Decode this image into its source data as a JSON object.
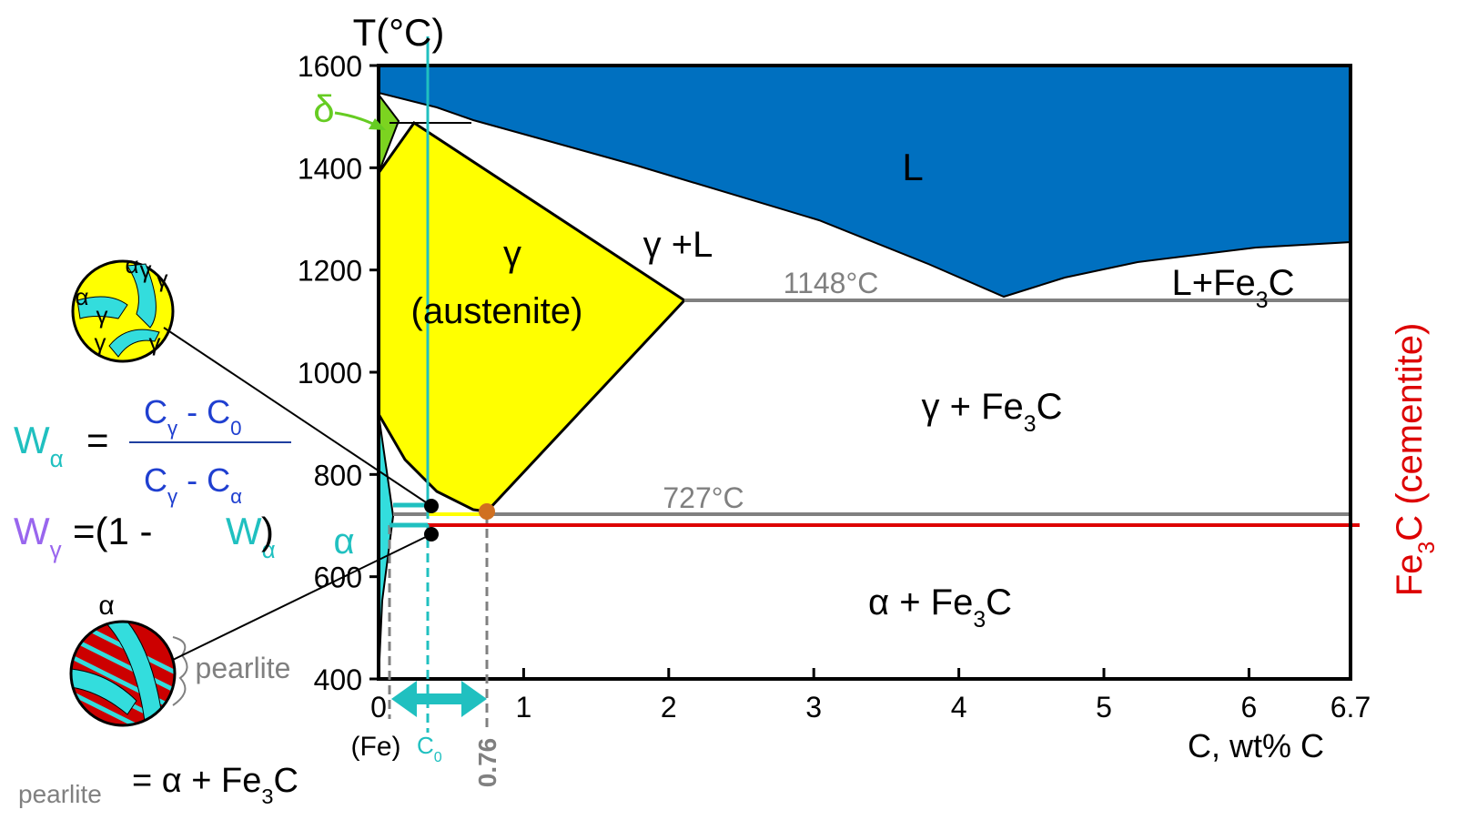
{
  "chart_data": {
    "type": "phase-diagram",
    "y_label": "T(°C)",
    "x_label": "C, wt% C",
    "x_sublabel": "(Fe)",
    "xlim": [
      0,
      6.7
    ],
    "ylim": [
      400,
      1600
    ],
    "xticks": [
      0,
      1,
      2,
      3,
      4,
      5,
      6,
      6.7
    ],
    "yticks": [
      400,
      600,
      800,
      1000,
      1200,
      1400,
      1600
    ],
    "eutectoid_composition": 0.76,
    "c0": [
      "C",
      {
        "sub": "0"
      }
    ],
    "labels": {
      "liquid": [
        "L"
      ],
      "gamma_liquid": [
        "γ +L"
      ],
      "liquid_cementite": [
        "L+Fe",
        {
          "sub": "3"
        },
        "C"
      ],
      "gamma": [
        "γ"
      ],
      "austenite": [
        "(austenite)"
      ],
      "eutectic_temp": [
        "1148°C"
      ],
      "eutectoid_temp": [
        "727°C"
      ],
      "gamma_cementite": [
        "γ  + Fe",
        {
          "sub": "3"
        },
        "C"
      ],
      "alpha_cementite": [
        "α + Fe",
        {
          "sub": "3"
        },
        "C"
      ],
      "cementite": [
        "Fe",
        {
          "sub": "3"
        },
        "C (cementite)"
      ],
      "delta": [
        "δ"
      ],
      "alpha": [
        "α"
      ],
      "pearlite_tag": [
        "pearlite"
      ],
      "alpha_micro": [
        "α"
      ]
    },
    "formula": {
      "w_alpha": [
        "W",
        {
          "sub": "α"
        }
      ],
      "equals": [
        "="
      ],
      "numerator": [
        "C",
        {
          "sub": "γ"
        },
        " - C",
        {
          "sub": "0"
        }
      ],
      "denominator": [
        "C",
        {
          "sub": "γ"
        },
        " - C",
        {
          "sub": "α"
        }
      ],
      "w_gamma": [
        "W",
        {
          "sub": "γ"
        }
      ],
      "open": [
        "=(1 - "
      ],
      "w_alpha_2": [
        "W",
        {
          "sub": "α"
        }
      ],
      "close": [
        ")"
      ]
    },
    "pearlite_equation": {
      "name": [
        "pearlite"
      ],
      "rhs": [
        "= α + Fe",
        {
          "sub": "3"
        },
        "C"
      ]
    },
    "microstructure_labels": [
      "γ",
      "γ",
      "γ",
      "γ",
      "γ",
      "α",
      "α"
    ]
  }
}
